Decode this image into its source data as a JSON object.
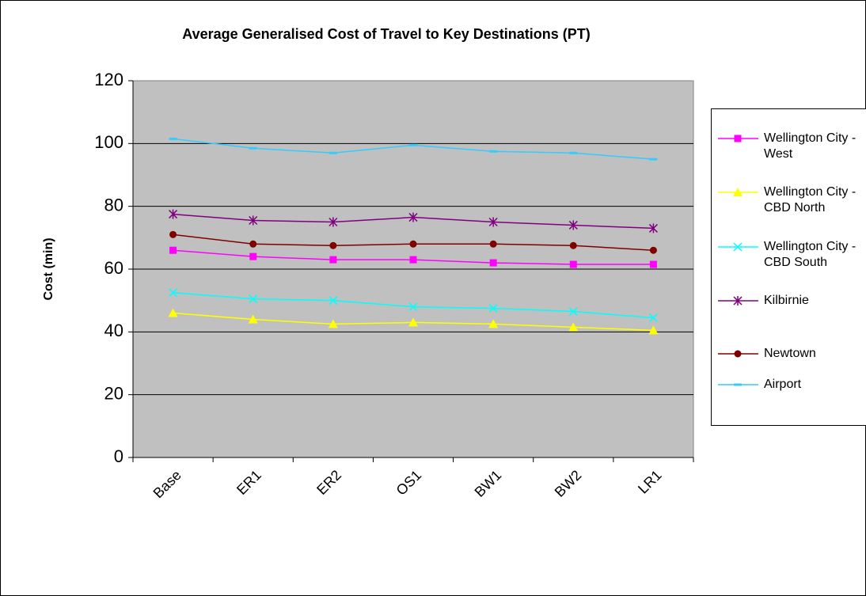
{
  "chart_data": {
    "type": "line",
    "title": "Average Generalised Cost of Travel to Key Destinations (PT)",
    "y_label": "Cost (min)",
    "categories": [
      "Base",
      "ER1",
      "ER2",
      "OS1",
      "BW1",
      "BW2",
      "LR1"
    ],
    "ylim": [
      0,
      120
    ],
    "yticks": [
      0,
      20,
      40,
      60,
      80,
      100,
      120
    ],
    "grid": true,
    "legend": "right",
    "series": [
      {
        "name": "Wellington City - West",
        "color": "#ff00ff",
        "marker": "square",
        "values": [
          66,
          64,
          63,
          63,
          62,
          61.5,
          61.5
        ]
      },
      {
        "name": "Wellington City - CBD North",
        "color": "#ffff00",
        "marker": "triangle",
        "values": [
          46,
          44,
          42.5,
          43,
          42.5,
          41.5,
          40.5
        ]
      },
      {
        "name": "Wellington City - CBD South",
        "color": "#00ffff",
        "marker": "x",
        "values": [
          52.5,
          50.5,
          50,
          48,
          47.5,
          46.5,
          44.5
        ]
      },
      {
        "name": "Kilbirnie",
        "color": "#800080",
        "marker": "star",
        "values": [
          77.5,
          75.5,
          75,
          76.5,
          75,
          74,
          73
        ]
      },
      {
        "name": "Newtown",
        "color": "#800000",
        "marker": "circle",
        "values": [
          71,
          68,
          67.5,
          68,
          68,
          67.5,
          66
        ]
      },
      {
        "name": "Airport",
        "color": "#33ccff",
        "marker": "dash",
        "values": [
          101.5,
          98.5,
          97,
          99.5,
          97.5,
          97,
          95
        ]
      }
    ]
  }
}
